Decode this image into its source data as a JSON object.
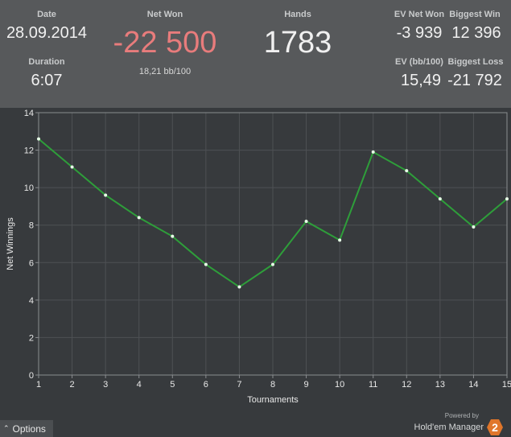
{
  "stats": {
    "date_label": "Date",
    "date_value": "28.09.2014",
    "duration_label": "Duration",
    "duration_value": "6:07",
    "netwon_label": "Net Won",
    "netwon_value": "-22 500",
    "netwon_sub": "18,21 bb/100",
    "hands_label": "Hands",
    "hands_value": "1783",
    "evnet_label": "EV Net Won",
    "evnet_value": "-3 939",
    "bigwin_label": "Biggest Win",
    "bigwin_value": "12 396",
    "evbb_label": "EV (bb/100)",
    "evbb_value": "15,49",
    "bigloss_label": "Biggest Loss",
    "bigloss_value": "-21 792",
    "negative_color": "#e87c7c"
  },
  "chart_data": {
    "type": "line",
    "x": [
      1,
      2,
      3,
      4,
      5,
      6,
      7,
      8,
      9,
      10,
      11,
      12,
      13,
      14,
      15
    ],
    "series": [
      {
        "values": [
          12.6,
          11.1,
          9.6,
          8.4,
          7.4,
          5.9,
          4.7,
          5.9,
          8.2,
          7.2,
          11.9,
          10.9,
          9.4,
          7.9,
          9.4
        ]
      }
    ],
    "xlabel": "Tournaments",
    "ylabel": "Net Winnings",
    "xlim": [
      1,
      15
    ],
    "ylim": [
      0,
      14
    ],
    "yticks": [
      0,
      2,
      4,
      6,
      8,
      10,
      12,
      14
    ],
    "xticks": [
      1,
      2,
      3,
      4,
      5,
      6,
      7,
      8,
      9,
      10,
      11,
      12,
      13,
      14,
      15
    ],
    "grid": true,
    "line_color": "#2e9e3a",
    "point_color": "#e8ffe8"
  },
  "footer": {
    "options_label": "Options",
    "options_icon": "chevron-up-icon",
    "powered_by": "Powered by",
    "brand_name": "Hold'em Manager",
    "brand_badge": "2"
  }
}
